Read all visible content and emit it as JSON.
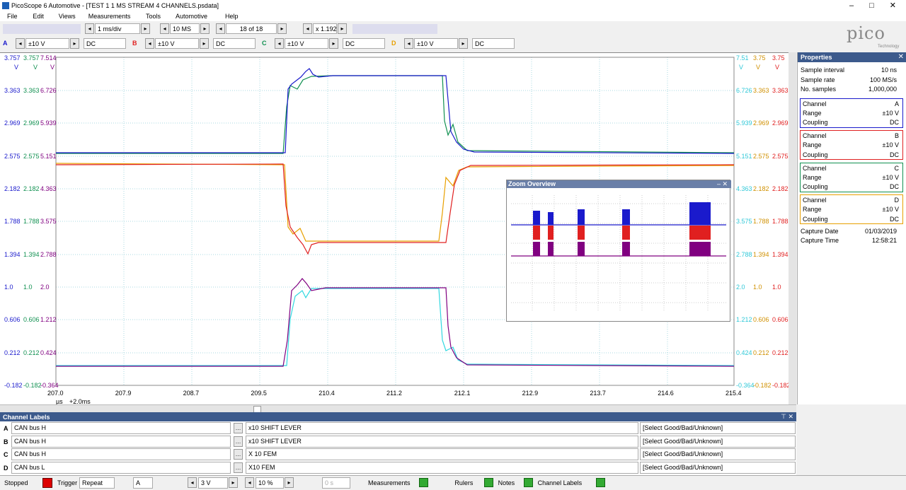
{
  "window": {
    "title": "PicoScope 6 Automotive - [TEST 1 1 MS STREAM 4 CHANNELS.psdata]"
  },
  "menu": [
    "File",
    "Edit",
    "Views",
    "Measurements",
    "Tools",
    "Automotive",
    "Help"
  ],
  "toolbar": {
    "timebase": "1 ms/div",
    "samples": "10 MS",
    "buffer": "18 of 18",
    "zoom": "x 1.192"
  },
  "channels": [
    {
      "id": "A",
      "range": "±10 V",
      "coupling": "DC"
    },
    {
      "id": "B",
      "range": "±10 V",
      "coupling": "DC"
    },
    {
      "id": "C",
      "range": "±10 V",
      "coupling": "DC"
    },
    {
      "id": "D",
      "range": "±10 V",
      "coupling": "DC"
    }
  ],
  "logo": {
    "brand": "pico",
    "sub": "Technology"
  },
  "scope": {
    "left_top": [
      "3.757",
      "3.757",
      "7.514"
    ],
    "left_units": [
      "V",
      "V",
      "V"
    ],
    "left_rows": [
      [
        "3.363",
        "3.363",
        "6.726"
      ],
      [
        "2.969",
        "2.969",
        "5.939"
      ],
      [
        "2.575",
        "2.575",
        "5.151"
      ],
      [
        "2.182",
        "2.182",
        "4.363"
      ],
      [
        "1.788",
        "1.788",
        "3.575"
      ],
      [
        "1.394",
        "1.394",
        "2.788"
      ],
      [
        "1.0",
        "1.0",
        "2.0"
      ],
      [
        "0.606",
        "0.606",
        "1.212"
      ],
      [
        "0.212",
        "0.212",
        "0.424"
      ],
      [
        "-0.182",
        "-0.182",
        "-0.364"
      ]
    ],
    "right_top": [
      "7.51",
      "3.75",
      "3.75"
    ],
    "right_units": [
      "V",
      "V",
      "V"
    ],
    "right_rows": [
      [
        "6.726",
        "3.363",
        "3.363"
      ],
      [
        "5.939",
        "2.969",
        "2.969"
      ],
      [
        "5.151",
        "2.575",
        "2.575"
      ],
      [
        "4.363",
        "2.182",
        "2.182"
      ],
      [
        "3.575",
        "1.788",
        "1.788"
      ],
      [
        "2.788",
        "1.394",
        "1.394"
      ],
      [
        "2.0",
        "1.0",
        "1.0"
      ],
      [
        "1.212",
        "0.606",
        "0.606"
      ],
      [
        "0.424",
        "0.212",
        "0.212"
      ],
      [
        "-0.364",
        "-0.182",
        "-0.182"
      ]
    ],
    "x_ticks": [
      "207.0",
      "207.9",
      "208.7",
      "209.5",
      "210.4",
      "211.2",
      "212.1",
      "212.9",
      "213.7",
      "214.6",
      "215.4"
    ],
    "x_unit": "µs",
    "x_offset": "+2.0ms"
  },
  "zoom_overview": {
    "title": "Zoom Overview"
  },
  "properties": {
    "title": "Properties",
    "rows": [
      [
        "Sample interval",
        "10 ns"
      ],
      [
        "Sample rate",
        "100 MS/s"
      ],
      [
        "No. samples",
        "1,000,000"
      ]
    ],
    "channels": [
      [
        [
          "Channel",
          "A"
        ],
        [
          "Range",
          "±10 V"
        ],
        [
          "Coupling",
          "DC"
        ]
      ],
      [
        [
          "Channel",
          "B"
        ],
        [
          "Range",
          "±10 V"
        ],
        [
          "Coupling",
          "DC"
        ]
      ],
      [
        [
          "Channel",
          "C"
        ],
        [
          "Range",
          "±10 V"
        ],
        [
          "Coupling",
          "DC"
        ]
      ],
      [
        [
          "Channel",
          "D"
        ],
        [
          "Range",
          "±10 V"
        ],
        [
          "Coupling",
          "DC"
        ]
      ]
    ],
    "capture": [
      [
        "Capture Date",
        "01/03/2019"
      ],
      [
        "Capture Time",
        "12:58:21"
      ]
    ]
  },
  "channel_labels": {
    "title": "Channel Labels",
    "rows": [
      [
        "A",
        "CAN bus H",
        "x10 SHIFT LEVER",
        "[Select Good/Bad/Unknown]"
      ],
      [
        "B",
        "CAN bus H",
        "x10 SHIFT LEVER",
        "[Select Good/Bad/Unknown]"
      ],
      [
        "C",
        "CAN bus H",
        "X 10 FEM",
        "[Select Good/Bad/Unknown]"
      ],
      [
        "D",
        "CAN bus L",
        "X10 FEM",
        "[Select Good/Bad/Unknown]"
      ]
    ]
  },
  "status": {
    "state": "Stopped",
    "trigger": "Trigger",
    "mode": "Repeat",
    "channel": "A",
    "level": "3 V",
    "pre": "10 %",
    "delay": "0 s",
    "buttons": [
      "Measurements",
      "Rulers",
      "Notes",
      "Channel Labels"
    ]
  }
}
